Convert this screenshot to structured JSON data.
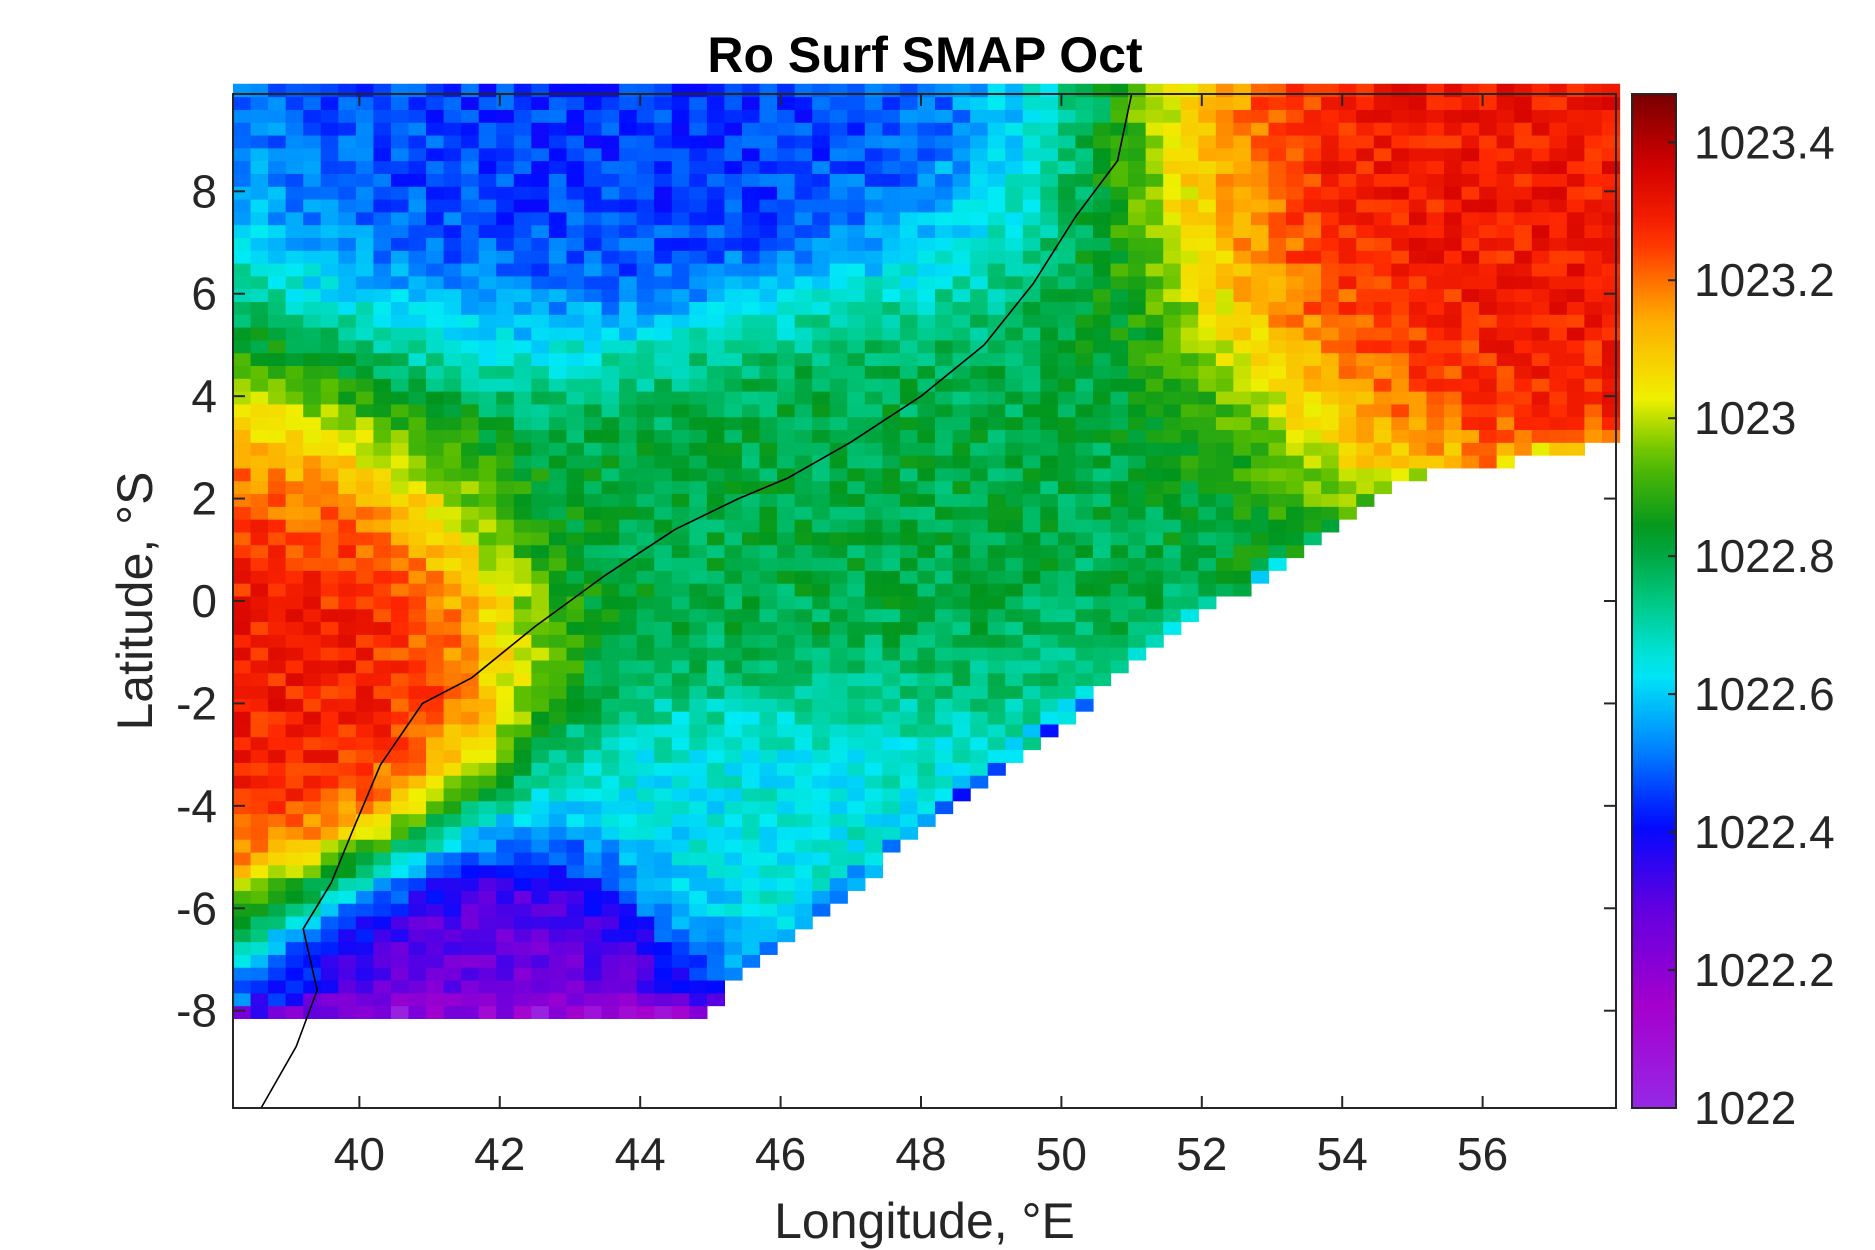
{
  "chart_data": {
    "type": "heatmap",
    "title": "Ro Surf SMAP Oct",
    "xlabel": "Longitude, °E",
    "ylabel": "Latitude, °S",
    "xlim": [
      38.2,
      57.9
    ],
    "ylim": [
      -9.9,
      9.9
    ],
    "xticks": [
      40,
      42,
      44,
      46,
      48,
      50,
      52,
      54,
      56
    ],
    "xtick_labels": [
      "40",
      "42",
      "44",
      "46",
      "48",
      "50",
      "52",
      "54",
      "56"
    ],
    "yticks": [
      8,
      6,
      4,
      2,
      0,
      -2,
      -4,
      -6,
      -8
    ],
    "ytick_labels": [
      "8",
      "6",
      "4",
      "2",
      "0",
      "-2",
      "-4",
      "-6",
      "-8"
    ],
    "colorbar": {
      "min": 1022.0,
      "max": 1023.47,
      "ticks": [
        1023.4,
        1023.2,
        1023.0,
        1022.8,
        1022.6,
        1022.4,
        1022.2,
        1022.0
      ],
      "tick_labels": [
        "1023.4",
        "1023.2",
        "1023",
        "1022.8",
        "1022.6",
        "1022.4",
        "1022.2",
        "1022"
      ],
      "colormap": "jet-like (violet-blue-cyan-green-yellow-red-darkred)"
    },
    "grid_resolution_deg": 0.25,
    "data_domain": {
      "south_edge_lat": -8.1,
      "east_lon_at_south_edge": 44.8,
      "boundary_line": [
        [
          44.8,
          -8.1
        ],
        [
          49.1,
          -3.3
        ],
        [
          52.0,
          -0.3
        ],
        [
          55.0,
          2.4
        ],
        [
          57.9,
          3.1
        ]
      ]
    },
    "field_regions": [
      {
        "description": "western coastal high",
        "lon": 38.5,
        "lat": -2.0,
        "value": 1023.3
      },
      {
        "description": "northeast high",
        "lon": 57.5,
        "lat": 8.5,
        "value": 1023.3
      },
      {
        "description": "northern low band",
        "lon": 44.0,
        "lat": 9.5,
        "value": 1022.45
      },
      {
        "description": "central green band",
        "lon": 46.5,
        "lat": 1.5,
        "value": 1022.8
      },
      {
        "description": "southern cyan region",
        "lon": 46.0,
        "lat": -5.0,
        "value": 1022.65
      },
      {
        "description": "southern edge low",
        "lon": 42.5,
        "lat": -7.8,
        "value": 1022.25
      }
    ],
    "coastline": [
      [
        38.6,
        -9.9
      ],
      [
        39.1,
        -8.7
      ],
      [
        39.4,
        -7.6
      ],
      [
        39.2,
        -6.4
      ],
      [
        39.6,
        -5.5
      ],
      [
        39.9,
        -4.5
      ],
      [
        40.3,
        -3.2
      ],
      [
        40.9,
        -2.0
      ],
      [
        41.6,
        -1.5
      ],
      [
        42.5,
        -0.5
      ],
      [
        43.5,
        0.5
      ],
      [
        44.5,
        1.4
      ],
      [
        45.4,
        2.0
      ],
      [
        46.1,
        2.4
      ],
      [
        47.0,
        3.1
      ],
      [
        48.0,
        4.0
      ],
      [
        48.9,
        5.0
      ],
      [
        49.6,
        6.2
      ],
      [
        50.2,
        7.5
      ],
      [
        50.8,
        8.6
      ],
      [
        51.0,
        9.9
      ]
    ]
  }
}
